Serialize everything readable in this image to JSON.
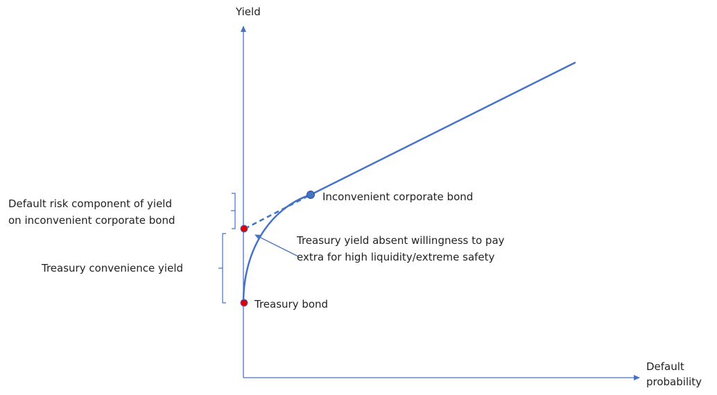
{
  "axes": {
    "y_label": "Yield",
    "x_label": [
      "Default",
      "probability"
    ]
  },
  "points": {
    "corporate": "Inconvenient corporate bond",
    "treasury": "Treasury bond"
  },
  "annotations": {
    "default_risk": [
      "Default risk component of yield",
      "on inconvenient corporate bond"
    ],
    "convenience": "Treasury convenience yield",
    "absent": [
      "Treasury yield absent willingness to pay",
      "extra for high liquidity/extreme safety"
    ]
  }
}
